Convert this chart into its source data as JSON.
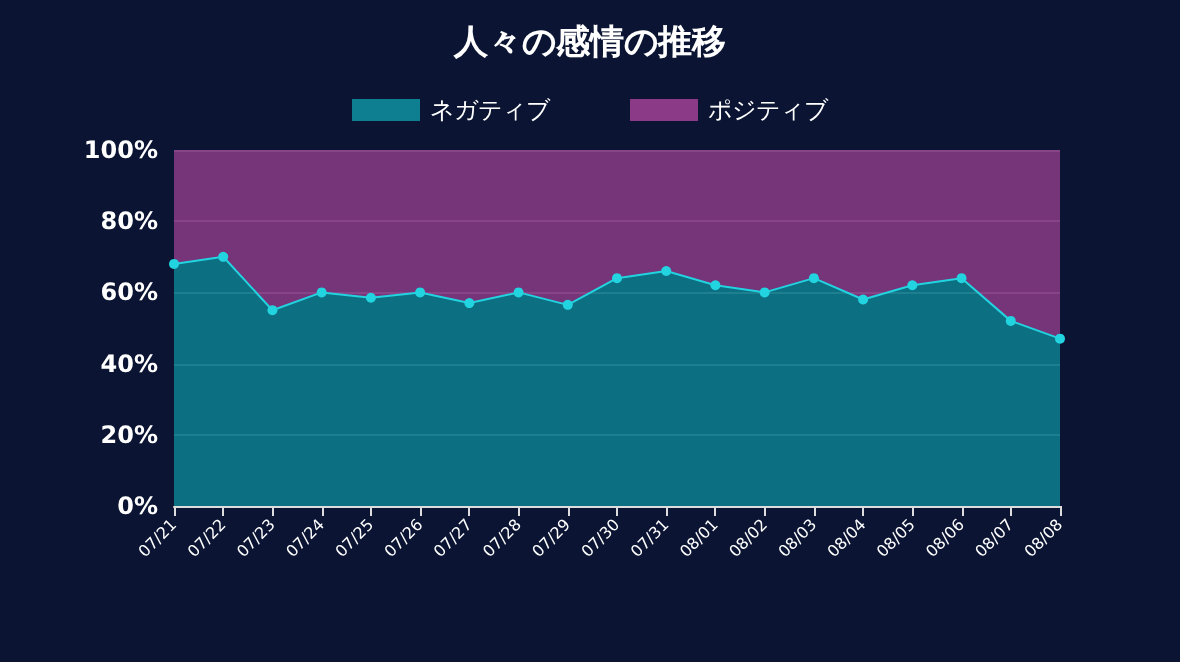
{
  "chart_data": {
    "type": "area",
    "title": "人々の感情の推移",
    "stacked": true,
    "categories": [
      "07/21",
      "07/22",
      "07/23",
      "07/24",
      "07/25",
      "07/26",
      "07/27",
      "07/28",
      "07/29",
      "07/30",
      "07/31",
      "08/01",
      "08/02",
      "08/03",
      "08/04",
      "08/05",
      "08/06",
      "08/07",
      "08/08"
    ],
    "series": [
      {
        "name": "ネガティブ",
        "color": "#0e7f90",
        "marker": "circle",
        "values": [
          68,
          70,
          55,
          60,
          58.5,
          60,
          57,
          60,
          56.5,
          64,
          66,
          62,
          60,
          64,
          58,
          62,
          64,
          52,
          47
        ]
      },
      {
        "name": "ポジティブ",
        "color": "#8a3a86",
        "marker": "none",
        "values": [
          32,
          30,
          45,
          40,
          41.5,
          40,
          43,
          40,
          43.5,
          36,
          34,
          38,
          40,
          36,
          42,
          38,
          36,
          48,
          53
        ]
      }
    ],
    "ylim": [
      0,
      100
    ],
    "yticks": [
      {
        "value": 0,
        "label": "0%"
      },
      {
        "value": 20,
        "label": "20%"
      },
      {
        "value": 40,
        "label": "40%"
      },
      {
        "value": 60,
        "label": "60%"
      },
      {
        "value": 80,
        "label": "80%"
      },
      {
        "value": 100,
        "label": "100%"
      }
    ],
    "grid": "y",
    "legend": "top"
  }
}
